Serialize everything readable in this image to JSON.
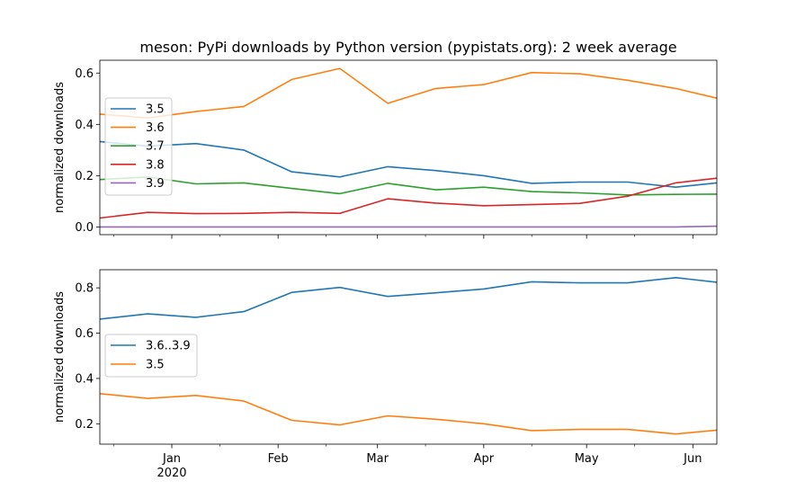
{
  "chart_data": [
    {
      "type": "line",
      "title": "meson: PyPi downloads by Python version (pypistats.org): 2 week average",
      "xlabel": "",
      "ylabel": "normalized downloads",
      "x": [
        "2019-12-11",
        "2019-12-25",
        "2020-01-08",
        "2020-01-22",
        "2020-02-05",
        "2020-02-19",
        "2020-03-04",
        "2020-03-18",
        "2020-04-01",
        "2020-04-15",
        "2020-04-29",
        "2020-05-13",
        "2020-05-27",
        "2020-06-08"
      ],
      "xlim": [
        "2019-12-11",
        "2020-06-08"
      ],
      "ylim": [
        -0.03,
        0.65
      ],
      "y_ticks": [
        0.0,
        0.2,
        0.4,
        0.6
      ],
      "y_tick_labels": [
        "0.0",
        "0.2",
        "0.4",
        "0.6"
      ],
      "show_x_tick_labels": false,
      "grid": false,
      "legend": "left",
      "series": [
        {
          "name": "3.5",
          "color": "#1f77b4",
          "values": [
            0.333,
            0.315,
            0.325,
            0.3,
            0.215,
            0.195,
            0.235,
            0.22,
            0.2,
            0.17,
            0.175,
            0.175,
            0.155,
            0.172
          ]
        },
        {
          "name": "3.6",
          "color": "#ff7f0e",
          "values": [
            0.44,
            0.425,
            0.45,
            0.47,
            0.575,
            0.618,
            0.482,
            0.54,
            0.555,
            0.602,
            0.597,
            0.572,
            0.54,
            0.502
          ]
        },
        {
          "name": "3.7",
          "color": "#2ca02c",
          "values": [
            0.185,
            0.195,
            0.168,
            0.172,
            0.15,
            0.13,
            0.17,
            0.145,
            0.155,
            0.138,
            0.133,
            0.125,
            0.127,
            0.128
          ]
        },
        {
          "name": "3.8",
          "color": "#d62728",
          "values": [
            0.035,
            0.057,
            0.052,
            0.053,
            0.057,
            0.053,
            0.11,
            0.093,
            0.083,
            0.087,
            0.092,
            0.12,
            0.172,
            0.19
          ]
        },
        {
          "name": "3.9",
          "color": "#9467bd",
          "values": [
            0.0,
            0.0,
            0.0,
            0.0,
            0.0,
            0.0,
            0.0,
            0.0,
            0.0,
            0.0,
            0.0,
            0.0,
            0.0,
            0.003
          ]
        }
      ]
    },
    {
      "type": "line",
      "title": "",
      "xlabel": "",
      "ylabel": "normalized downloads",
      "x": [
        "2019-12-11",
        "2019-12-25",
        "2020-01-08",
        "2020-01-22",
        "2020-02-05",
        "2020-02-19",
        "2020-03-04",
        "2020-03-18",
        "2020-04-01",
        "2020-04-15",
        "2020-04-29",
        "2020-05-13",
        "2020-05-27",
        "2020-06-08"
      ],
      "xlim": [
        "2019-12-11",
        "2020-06-08"
      ],
      "ylim": [
        0.11,
        0.88
      ],
      "y_ticks": [
        0.2,
        0.4,
        0.6,
        0.8
      ],
      "y_tick_labels": [
        "0.2",
        "0.4",
        "0.6",
        "0.8"
      ],
      "x_ticks": [
        "2020-01-01",
        "2020-02-01",
        "2020-03-01",
        "2020-04-01",
        "2020-05-01",
        "2020-06-01"
      ],
      "x_tick_labels": [
        "Jan\n2020",
        "Feb",
        "Mar",
        "Apr",
        "May",
        "Jun"
      ],
      "grid": false,
      "legend": "left",
      "series": [
        {
          "name": "3.6..3.9",
          "color": "#1f77b4",
          "values": [
            0.662,
            0.685,
            0.67,
            0.695,
            0.78,
            0.802,
            0.762,
            0.778,
            0.795,
            0.827,
            0.822,
            0.822,
            0.845,
            0.825
          ]
        },
        {
          "name": "3.5",
          "color": "#ff7f0e",
          "values": [
            0.333,
            0.312,
            0.325,
            0.3,
            0.215,
            0.195,
            0.235,
            0.22,
            0.2,
            0.17,
            0.175,
            0.175,
            0.155,
            0.172
          ]
        }
      ]
    }
  ]
}
